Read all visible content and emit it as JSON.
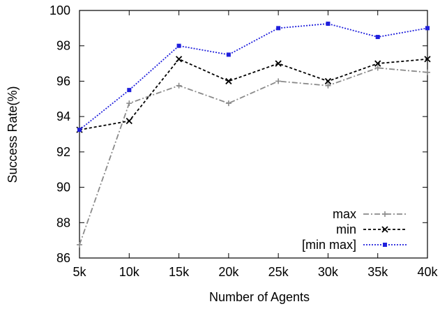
{
  "chart_data": {
    "type": "line",
    "title": "",
    "xlabel": "Number of Agents",
    "ylabel": "Success Rate(%)",
    "categories": [
      "5k",
      "10k",
      "15k",
      "20k",
      "25k",
      "30k",
      "35k",
      "40k"
    ],
    "ylim": [
      86,
      100
    ],
    "yticks": [
      "86",
      "88",
      "90",
      "92",
      "94",
      "96",
      "98",
      "100"
    ],
    "grid": false,
    "legend_position": "bottom-right",
    "series": [
      {
        "name": "max",
        "values": [
          86.75,
          94.75,
          95.75,
          94.75,
          96.0,
          95.75,
          96.75,
          96.5
        ],
        "color": "#8a8a8a",
        "dash": "dash-dot",
        "marker": "plus"
      },
      {
        "name": "min",
        "values": [
          93.25,
          93.75,
          97.25,
          96.0,
          97.0,
          96.0,
          97.0,
          97.25
        ],
        "color": "#000000",
        "dash": "dashed",
        "marker": "cross"
      },
      {
        "name": "[min max]",
        "values": [
          93.25,
          95.5,
          98.0,
          97.5,
          99.0,
          99.25,
          98.5,
          99.0
        ],
        "color": "#1f1fdc",
        "dash": "dotted",
        "marker": "square"
      }
    ]
  }
}
